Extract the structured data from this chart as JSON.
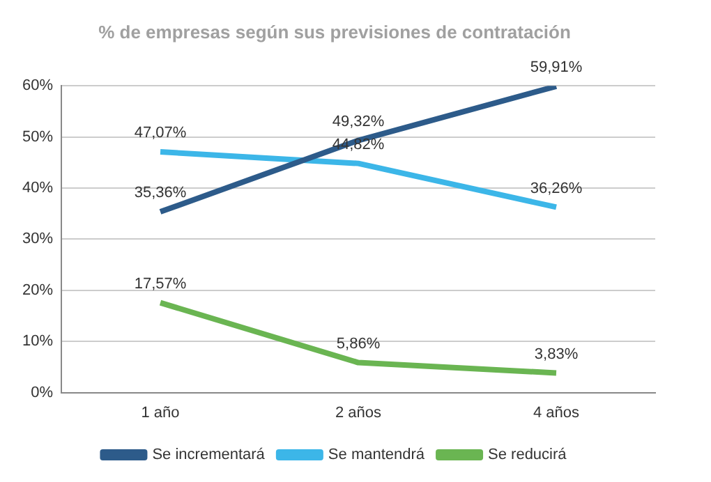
{
  "chart_data": {
    "type": "line",
    "title": "% de empresas según sus previsiones de contratación",
    "categories": [
      "1 año",
      "2 años",
      "4 años"
    ],
    "series": [
      {
        "name": "Se incrementará",
        "color": "#2d5b8a",
        "values": [
          35.36,
          49.32,
          59.91
        ],
        "value_labels": [
          "35,36%",
          "49,32%",
          "59,91%"
        ]
      },
      {
        "name": "Se mantendrá",
        "color": "#3cb6e8",
        "values": [
          47.07,
          44.82,
          36.26
        ],
        "value_labels": [
          "47,07%",
          "44,82%",
          "36,26%"
        ]
      },
      {
        "name": "Se reducirá",
        "color": "#6ab552",
        "values": [
          17.57,
          5.86,
          3.83
        ],
        "value_labels": [
          "17,57%",
          "5,86%",
          "3,83%"
        ]
      }
    ],
    "ylim": [
      0,
      60
    ],
    "yticks": [
      {
        "value": 0,
        "label": "0%"
      },
      {
        "value": 10,
        "label": "10%"
      },
      {
        "value": 20,
        "label": "20%"
      },
      {
        "value": 30,
        "label": "30%"
      },
      {
        "value": 40,
        "label": "40%"
      },
      {
        "value": 50,
        "label": "50%"
      },
      {
        "value": 60,
        "label": "60%"
      }
    ],
    "grid": "y",
    "legend": "bottom",
    "marker": "none",
    "line_style": "solid"
  }
}
